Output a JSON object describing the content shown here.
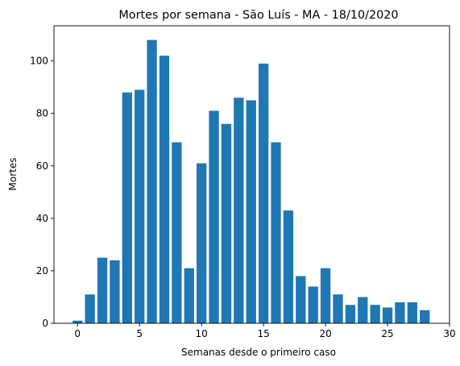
{
  "chart_data": {
    "type": "bar",
    "title": "Mortes por semana - São Luís - MA - 18/10/2020",
    "xlabel": "Semanas desde o primeiro caso",
    "ylabel": "Mortes",
    "x": [
      0,
      1,
      2,
      3,
      4,
      5,
      6,
      7,
      8,
      9,
      10,
      11,
      12,
      13,
      14,
      15,
      16,
      17,
      18,
      19,
      20,
      21,
      22,
      23,
      24,
      25,
      26,
      27,
      28
    ],
    "values": [
      1,
      11,
      25,
      24,
      88,
      89,
      108,
      102,
      69,
      21,
      61,
      81,
      76,
      86,
      85,
      99,
      69,
      43,
      18,
      14,
      21,
      11,
      7,
      10,
      7,
      6,
      8,
      8,
      5
    ],
    "xlim": [
      -1.9,
      30.0
    ],
    "ylim": [
      0,
      113.4
    ],
    "xticks": [
      0,
      5,
      10,
      15,
      20,
      25,
      30
    ],
    "yticks": [
      0,
      20,
      40,
      60,
      80,
      100
    ],
    "bar_color": "#1f77b4",
    "grid": false
  }
}
